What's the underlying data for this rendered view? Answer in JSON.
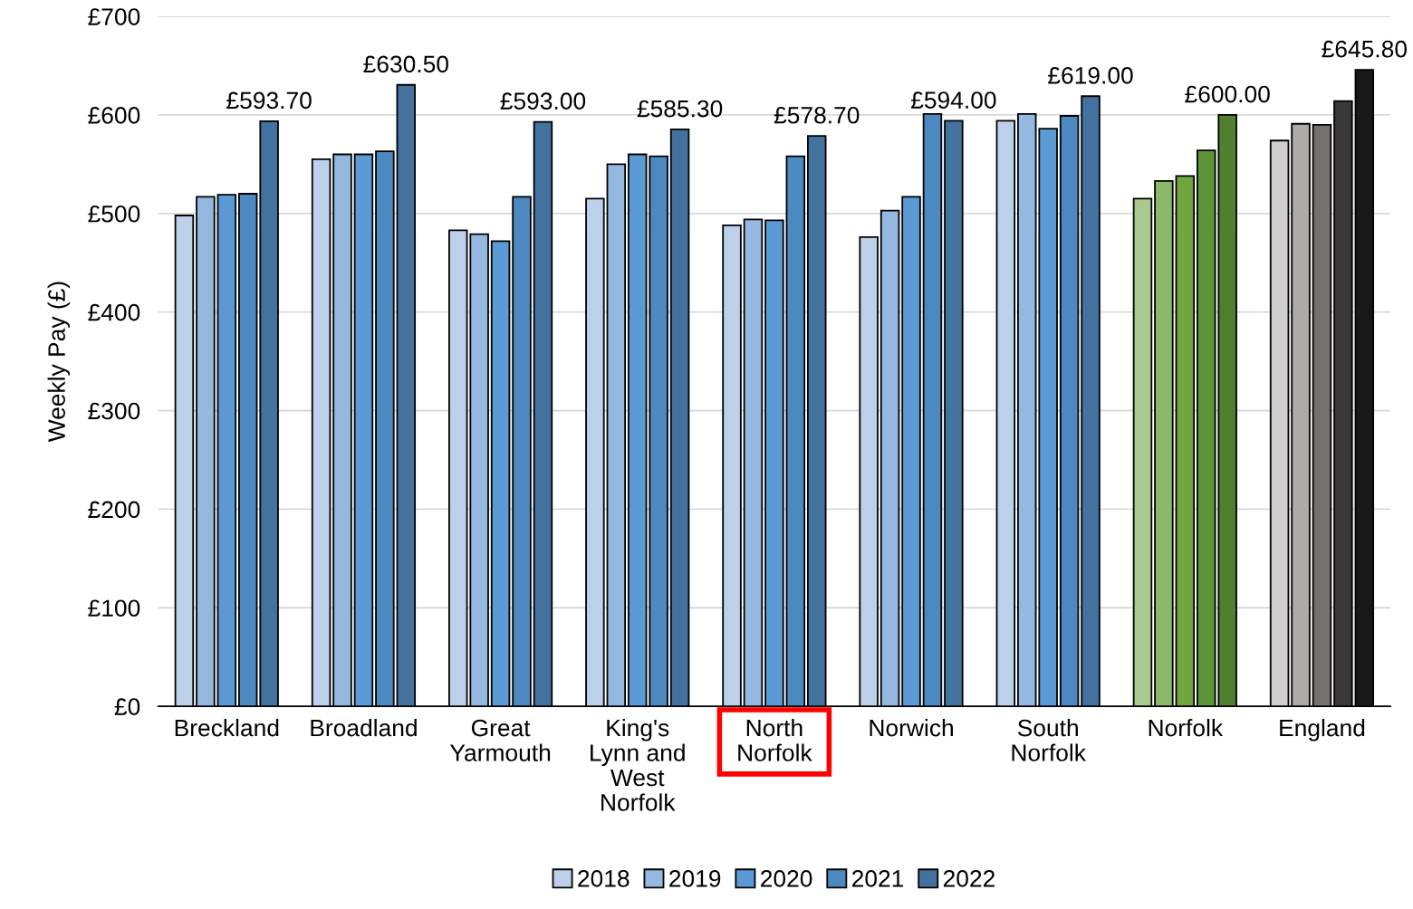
{
  "chart_data": {
    "type": "bar",
    "ylabel": "Weekly Pay (£)",
    "categories": [
      "Breckland",
      "Broadland",
      "Great\nYarmouth",
      "King's\nLynn and\nWest\nNorfolk",
      "North\nNorfolk",
      "Norwich",
      "South\nNorfolk",
      "Norfolk",
      "England"
    ],
    "series": [
      {
        "name": "2018",
        "color": "#bdd0ea",
        "colors": [
          "#bdd0ea",
          "#bdd0ea",
          "#bdd0ea",
          "#bdd0ea",
          "#bdd0ea",
          "#bdd0ea",
          "#bdd0ea",
          "#a9c98f",
          "#d0cece"
        ],
        "values": [
          498,
          555,
          483,
          515,
          488,
          476,
          594,
          515,
          574
        ]
      },
      {
        "name": "2019",
        "color": "#95b8e0",
        "colors": [
          "#95b8e0",
          "#95b8e0",
          "#95b8e0",
          "#95b8e0",
          "#95b8e0",
          "#95b8e0",
          "#95b8e0",
          "#8cb86e",
          "#aeaaaa"
        ],
        "values": [
          517,
          560,
          479,
          550,
          494,
          503,
          601,
          533,
          591
        ]
      },
      {
        "name": "2020",
        "color": "#5b9bd5",
        "colors": [
          "#5b9bd5",
          "#5b9bd5",
          "#5b9bd5",
          "#5b9bd5",
          "#5b9bd5",
          "#5b9bd5",
          "#5b9bd5",
          "#70a540",
          "#767171"
        ],
        "values": [
          519,
          560,
          472,
          560,
          493,
          517,
          586,
          538,
          590
        ]
      },
      {
        "name": "2021",
        "color": "#4c89c0",
        "colors": [
          "#4c89c0",
          "#4c89c0",
          "#4c89c0",
          "#4c89c0",
          "#4c89c0",
          "#4c89c0",
          "#4c89c0",
          "#5e9438",
          "#3a3838"
        ],
        "values": [
          520,
          563,
          517,
          558,
          558,
          601,
          599,
          564,
          614
        ]
      },
      {
        "name": "2022",
        "color": "#43729f",
        "colors": [
          "#43729f",
          "#43729f",
          "#43729f",
          "#43729f",
          "#43729f",
          "#43729f",
          "#43729f",
          "#507f30",
          "#181818"
        ],
        "values": [
          593.7,
          630.5,
          593.0,
          585.3,
          578.7,
          594.0,
          619.0,
          600.0,
          645.8
        ],
        "value_labels": [
          "£593.70",
          "£630.50",
          "£593.00",
          "£585.30",
          "£578.70",
          "£594.00",
          "£619.00",
          "£600.00",
          "£645.80"
        ]
      }
    ],
    "ylim": [
      0,
      700
    ],
    "yticks": [
      {
        "value": 0,
        "label": "£0"
      },
      {
        "value": 100,
        "label": "£100"
      },
      {
        "value": 200,
        "label": "£200"
      },
      {
        "value": 300,
        "label": "£300"
      },
      {
        "value": 400,
        "label": "£400"
      },
      {
        "value": 500,
        "label": "£500"
      },
      {
        "value": 600,
        "label": "£600"
      },
      {
        "value": 700,
        "label": "£700"
      }
    ],
    "grid": "y",
    "legend": "bottom"
  }
}
